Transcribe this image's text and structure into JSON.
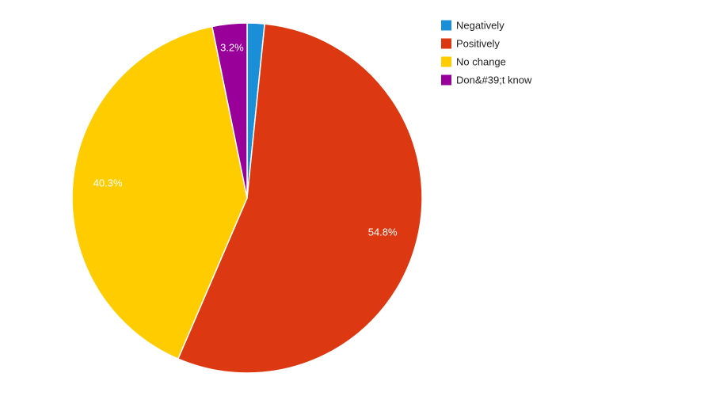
{
  "chart_data": {
    "type": "pie",
    "categories": [
      "Negatively",
      "Positively",
      "No change",
      "Don&#39;t know"
    ],
    "values": [
      1.6,
      54.8,
      40.3,
      3.2
    ],
    "data_labels": [
      "",
      "54.8%",
      "40.3%",
      "3.2%"
    ],
    "colors": [
      "#1a8fd8",
      "#dc3912",
      "#ffcc00",
      "#990099"
    ],
    "legend_position": "right",
    "start_angle_deg": 0,
    "direction": "clockwise"
  }
}
